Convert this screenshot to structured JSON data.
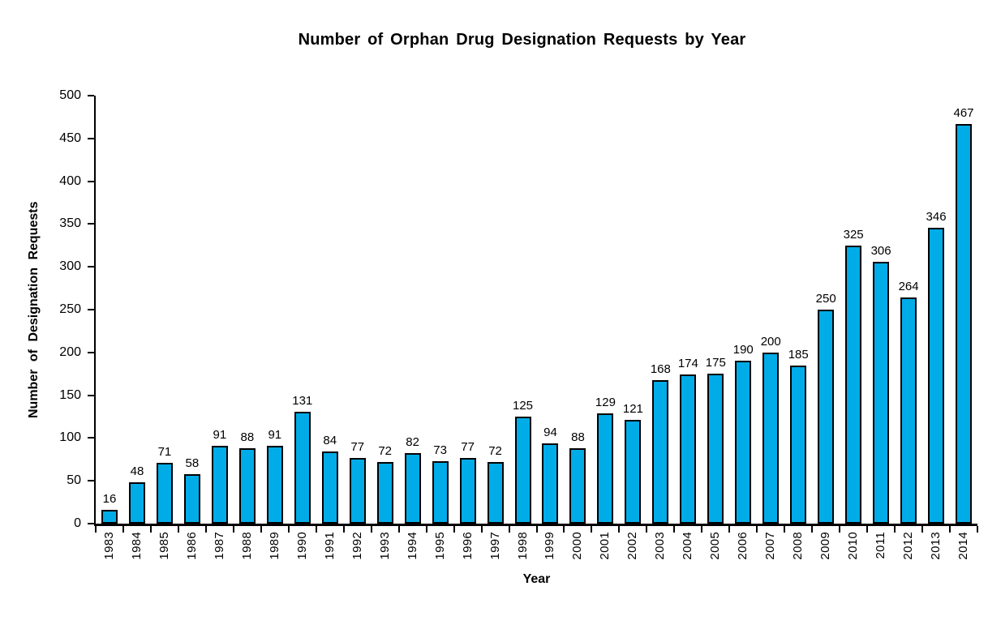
{
  "chart_data": {
    "type": "bar",
    "title": "Number of Orphan Drug Designation Requests by Year",
    "xlabel": "Year",
    "ylabel": "Number of Designation Requests",
    "categories": [
      "1983",
      "1984",
      "1985",
      "1986",
      "1987",
      "1988",
      "1989",
      "1990",
      "1991",
      "1992",
      "1993",
      "1994",
      "1995",
      "1996",
      "1997",
      "1998",
      "1999",
      "2000",
      "2001",
      "2002",
      "2003",
      "2004",
      "2005",
      "2006",
      "2007",
      "2008",
      "2009",
      "2010",
      "2011",
      "2012",
      "2013",
      "2014"
    ],
    "values": [
      16,
      48,
      71,
      58,
      91,
      88,
      91,
      131,
      84,
      77,
      72,
      82,
      73,
      77,
      72,
      125,
      94,
      88,
      129,
      121,
      168,
      174,
      175,
      190,
      200,
      185,
      250,
      325,
      306,
      264,
      346,
      467
    ],
    "ylim": [
      0,
      500
    ],
    "yticks": [
      0,
      50,
      100,
      150,
      200,
      250,
      300,
      350,
      400,
      450,
      500
    ],
    "grid": false,
    "legend": null,
    "show_value_labels": true,
    "colors": {
      "bar_fill": "#00ACE8",
      "bar_border": "#000000",
      "axis": "#000000",
      "text": "#000000",
      "background": "#FFFFFF"
    }
  }
}
